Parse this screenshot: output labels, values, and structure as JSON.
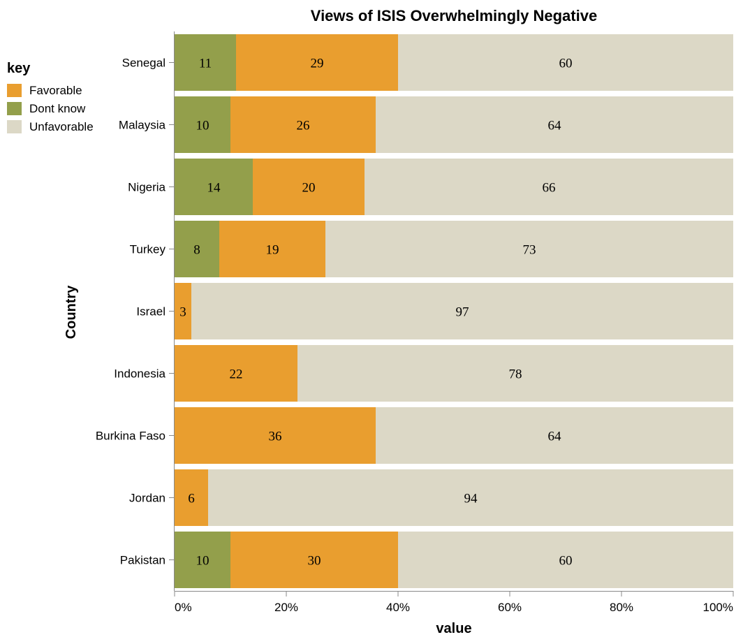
{
  "chart_data": {
    "type": "bar",
    "orientation": "horizontal",
    "stacked": "normalized",
    "title": "Views of ISIS Overwhelmingly Negative",
    "xlabel": "value",
    "ylabel": "Country",
    "xlim": [
      0,
      100
    ],
    "x_ticks": [
      "0%",
      "20%",
      "40%",
      "60%",
      "80%",
      "100%"
    ],
    "grid": false,
    "legend": {
      "title": "key",
      "position": "top-left",
      "items": [
        {
          "label": "Favorable",
          "color": "#e99e2f"
        },
        {
          "label": "Dont know",
          "color": "#939f4b"
        },
        {
          "label": "Unfavorable",
          "color": "#dcd8c6"
        }
      ]
    },
    "stack_order": [
      "Dont know",
      "Favorable",
      "Unfavorable"
    ],
    "categories": [
      "Senegal",
      "Malaysia",
      "Nigeria",
      "Turkey",
      "Israel",
      "Indonesia",
      "Burkina Faso",
      "Jordan",
      "Pakistan"
    ],
    "series": [
      {
        "name": "Dont know",
        "color": "#939f4b",
        "values": [
          11,
          10,
          14,
          8,
          null,
          null,
          null,
          null,
          10
        ]
      },
      {
        "name": "Favorable",
        "color": "#e99e2f",
        "values": [
          29,
          26,
          20,
          19,
          3,
          22,
          36,
          6,
          30
        ]
      },
      {
        "name": "Unfavorable",
        "color": "#dcd8c6",
        "values": [
          60,
          64,
          66,
          73,
          97,
          78,
          64,
          94,
          60
        ]
      }
    ]
  }
}
